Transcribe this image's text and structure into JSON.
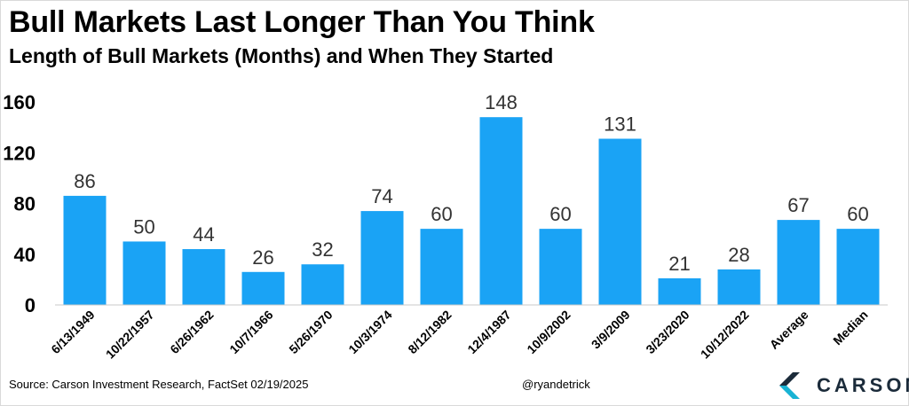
{
  "header": {
    "title": "Bull Markets Last Longer Than You Think",
    "subtitle": "Length of Bull Markets (Months) and When They Started"
  },
  "footer": {
    "source": "Source: Carson Investment Research, FactSet 02/19/2025",
    "handle": "@ryandetrick",
    "logo_text": "CARSON"
  },
  "colors": {
    "bar": "#1aa3f5",
    "logo_dark": "#1b2b3a",
    "logo_accent": "#19b3d4"
  },
  "chart_data": {
    "type": "bar",
    "title": "Bull Markets Last Longer Than You Think",
    "subtitle": "Length of Bull Markets (Months) and When They Started",
    "xlabel": "",
    "ylabel": "",
    "categories": [
      "6/13/1949",
      "10/22/1957",
      "6/26/1962",
      "10/7/1966",
      "5/26/1970",
      "10/3/1974",
      "8/12/1982",
      "12/4/1987",
      "10/9/2002",
      "3/9/2009",
      "3/23/2020",
      "10/12/2022",
      "Average",
      "Median"
    ],
    "values": [
      86,
      50,
      44,
      26,
      32,
      74,
      60,
      148,
      60,
      131,
      21,
      28,
      67,
      60
    ],
    "data_labels": [
      "86",
      "50",
      "44",
      "26",
      "32",
      "74",
      "60",
      "148",
      "60",
      "131",
      "21",
      "28",
      "67",
      "60"
    ],
    "yticks": [
      0,
      40,
      80,
      120,
      160
    ],
    "ytick_labels": [
      "0",
      "40",
      "80",
      "120",
      "160"
    ],
    "ylim": [
      0,
      160
    ],
    "grid": false,
    "legend": "none"
  }
}
